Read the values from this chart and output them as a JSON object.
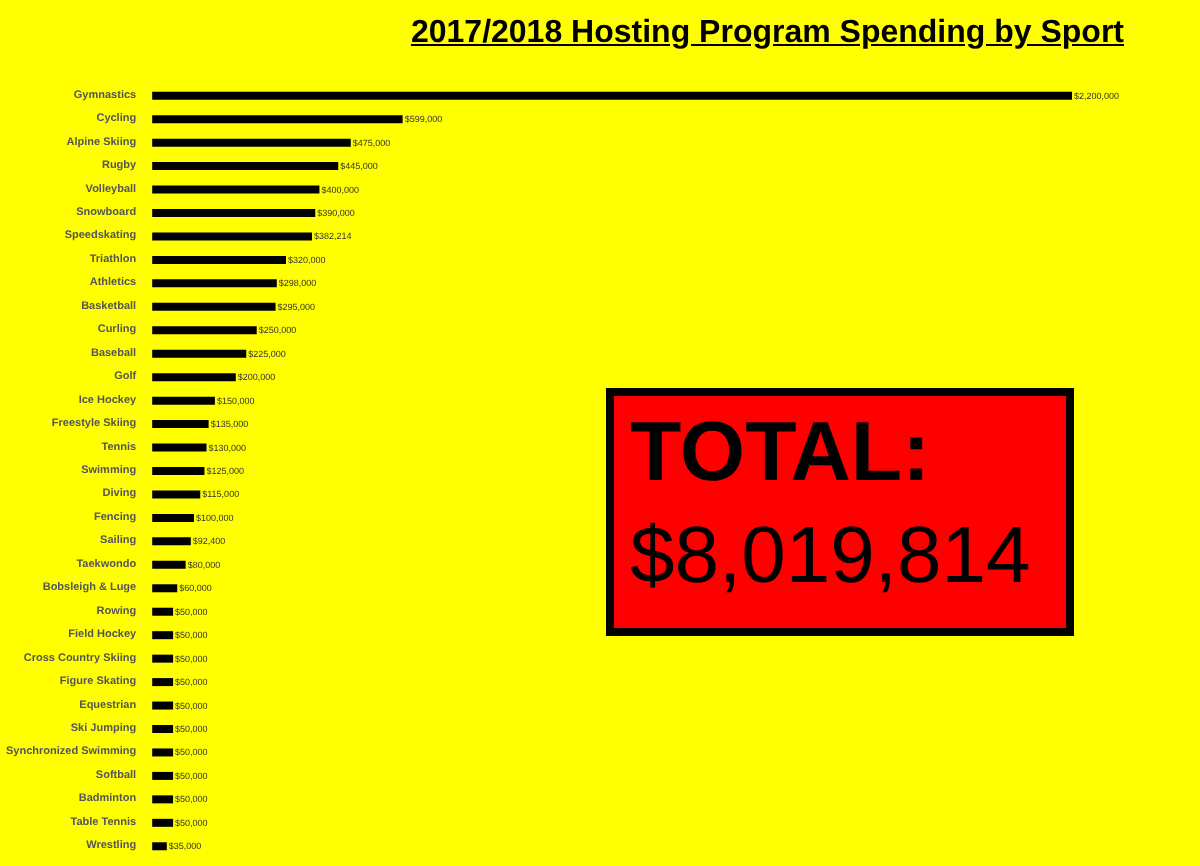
{
  "chart_data": {
    "type": "bar",
    "orientation": "horizontal",
    "title": "2017/2018 Hosting Program Spending by Sport",
    "categories": [
      "Gymnastics",
      "Cycling",
      "Alpine Skiing",
      "Rugby",
      "Volleyball",
      "Snowboard",
      "Speedskating",
      "Triathlon",
      "Athletics",
      "Basketball",
      "Curling",
      "Baseball",
      "Golf",
      "Ice Hockey",
      "Freestyle Skiing",
      "Tennis",
      "Swimming",
      "Diving",
      "Fencing",
      "Sailing",
      "Taekwondo",
      "Bobsleigh & Luge",
      "Rowing",
      "Field Hockey",
      "Cross Country Skiing",
      "Figure Skating",
      "Equestrian",
      "Ski Jumping",
      "Synchronized Swimming",
      "Softball",
      "Badminton",
      "Table Tennis",
      "Wrestling"
    ],
    "values": [
      2200000,
      599000,
      475000,
      445000,
      400000,
      390000,
      382214,
      320000,
      298000,
      295000,
      250000,
      225000,
      200000,
      150000,
      135000,
      130000,
      125000,
      115000,
      100000,
      92400,
      80000,
      60000,
      50000,
      50000,
      50000,
      50000,
      50000,
      50000,
      50000,
      50000,
      50000,
      50000,
      35000
    ],
    "value_labels": [
      "$2,200,000",
      "$599,000",
      "$475,000",
      "$445,000",
      "$400,000",
      "$390,000",
      "$382,214",
      "$320,000",
      "$298,000",
      "$295,000",
      "$250,000",
      "$225,000",
      "$200,000",
      "$150,000",
      "$135,000",
      "$130,000",
      "$125,000",
      "$115,000",
      "$100,000",
      "$92,400",
      "$80,000",
      "$60,000",
      "$50,000",
      "$50,000",
      "$50,000",
      "$50,000",
      "$50,000",
      "$50,000",
      "$50,000",
      "$50,000",
      "$50,000",
      "$50,000",
      "$35,000"
    ],
    "color": "#000000",
    "annotations": [
      "TOTAL:",
      "$8,019,814"
    ]
  }
}
